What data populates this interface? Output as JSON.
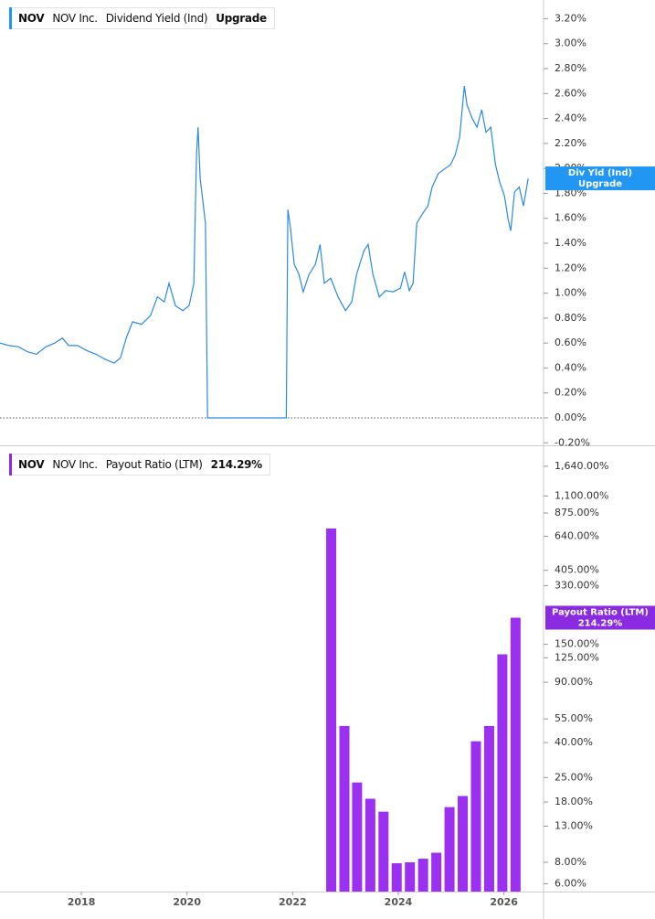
{
  "chart_data": [
    {
      "type": "line",
      "ticker": "NOV",
      "company": "NOV Inc.",
      "xlim": [
        2016.46,
        2026.75
      ],
      "ylim": [
        -0.22,
        3.35
      ],
      "yticks": [
        {
          "value": -0.2,
          "label": "-0.20%"
        },
        {
          "value": 0,
          "label": "0.00%"
        },
        {
          "value": 0.2,
          "label": "0.20%"
        },
        {
          "value": 0.4,
          "label": "0.40%"
        },
        {
          "value": 0.6,
          "label": "0.60%"
        },
        {
          "value": 0.8,
          "label": "0.80%"
        },
        {
          "value": 1.0,
          "label": "1.00%"
        },
        {
          "value": 1.2,
          "label": "1.20%"
        },
        {
          "value": 1.4,
          "label": "1.40%"
        },
        {
          "value": 1.6,
          "label": "1.60%"
        },
        {
          "value": 1.8,
          "label": "1.80%"
        },
        {
          "value": 2.0,
          "label": "2.00%"
        },
        {
          "value": 2.2,
          "label": "2.20%"
        },
        {
          "value": 2.4,
          "label": "2.40%"
        },
        {
          "value": 2.6,
          "label": "2.60%"
        },
        {
          "value": 2.8,
          "label": "2.80%"
        },
        {
          "value": 3.0,
          "label": "3.00%"
        },
        {
          "value": 3.2,
          "label": "3.20%"
        }
      ],
      "zero_line": true,
      "series": [
        {
          "name": "Dividend Yield (Ind)",
          "short_name": "Div Yld (Ind)",
          "status": "Upgrade",
          "color": "#2a8ae0",
          "tag_color": "#2196f3",
          "x": [
            2016.46,
            2016.63,
            2016.81,
            2016.98,
            2017.15,
            2017.33,
            2017.5,
            2017.64,
            2017.76,
            2017.93,
            2018.1,
            2018.28,
            2018.45,
            2018.62,
            2018.74,
            2018.85,
            2018.97,
            2019.14,
            2019.31,
            2019.44,
            2019.57,
            2019.66,
            2019.78,
            2019.92,
            2020.04,
            2020.13,
            2020.18,
            2020.21,
            2020.25,
            2020.3,
            2020.35,
            2020.39,
            2021.88,
            2021.91,
            2021.96,
            2022.03,
            2022.12,
            2022.2,
            2022.31,
            2022.43,
            2022.52,
            2022.6,
            2022.72,
            2022.86,
            2023.0,
            2023.12,
            2023.21,
            2023.35,
            2023.43,
            2023.52,
            2023.64,
            2023.76,
            2023.9,
            2024.04,
            2024.12,
            2024.21,
            2024.28,
            2024.35,
            2024.45,
            2024.56,
            2024.64,
            2024.76,
            2024.89,
            2024.99,
            2025.08,
            2025.16,
            2025.25,
            2025.3,
            2025.4,
            2025.49,
            2025.58,
            2025.66,
            2025.75,
            2025.84,
            2025.92,
            2026.01,
            2026.08,
            2026.13,
            2026.2,
            2026.29,
            2026.37,
            2026.46
          ],
          "values": [
            0.6,
            0.58,
            0.57,
            0.53,
            0.51,
            0.57,
            0.6,
            0.64,
            0.58,
            0.58,
            0.54,
            0.51,
            0.47,
            0.44,
            0.48,
            0.64,
            0.77,
            0.75,
            0.82,
            0.97,
            0.93,
            1.08,
            0.9,
            0.86,
            0.9,
            1.08,
            2.11,
            2.33,
            1.92,
            1.74,
            1.56,
            0,
            0,
            1.67,
            1.52,
            1.23,
            1.15,
            1.01,
            1.15,
            1.23,
            1.39,
            1.08,
            1.12,
            0.97,
            0.86,
            0.93,
            1.15,
            1.34,
            1.39,
            1.15,
            0.97,
            1.02,
            1.01,
            1.04,
            1.17,
            1.02,
            1.08,
            1.56,
            1.63,
            1.7,
            1.85,
            1.96,
            2.0,
            2.03,
            2.11,
            2.25,
            2.66,
            2.51,
            2.4,
            2.33,
            2.47,
            2.29,
            2.33,
            2.03,
            1.89,
            1.78,
            1.59,
            1.5,
            1.81,
            1.85,
            1.7,
            1.92
          ]
        }
      ]
    },
    {
      "type": "bar",
      "ticker": "NOV",
      "company": "NOV Inc.",
      "log": true,
      "xlim": [
        2016.46,
        2026.75
      ],
      "xticks": [
        2018,
        2020,
        2022,
        2024,
        2026
      ],
      "ylim": [
        5.4,
        1970
      ],
      "yticks": [
        {
          "value": 6,
          "label": "6.00%"
        },
        {
          "value": 8,
          "label": "8.00%"
        },
        {
          "value": 13,
          "label": "13.00%"
        },
        {
          "value": 18,
          "label": "18.00%"
        },
        {
          "value": 25,
          "label": "25.00%"
        },
        {
          "value": 40,
          "label": "40.00%"
        },
        {
          "value": 55,
          "label": "55.00%"
        },
        {
          "value": 90,
          "label": "90.00%"
        },
        {
          "value": 125,
          "label": "125.00%"
        },
        {
          "value": 150,
          "label": "150.00%"
        },
        {
          "value": 330,
          "label": "330.00%"
        },
        {
          "value": 405,
          "label": "405.00%"
        },
        {
          "value": 640,
          "label": "640.00%"
        },
        {
          "value": 875,
          "label": "875.00%"
        },
        {
          "value": 1100,
          "label": "1,100.00%"
        },
        {
          "value": 1640,
          "label": "1,640.00%"
        }
      ],
      "series": [
        {
          "name": "Payout Ratio (LTM)",
          "color": "#9b30f0",
          "tag_color": "#8a2be2",
          "x": [
            2022.73,
            2022.98,
            2023.22,
            2023.47,
            2023.72,
            2023.97,
            2024.22,
            2024.47,
            2024.72,
            2024.97,
            2025.22,
            2025.47,
            2025.72,
            2025.97,
            2026.22
          ],
          "values": [
            711,
            50,
            23.4,
            18.8,
            15.8,
            7.9,
            8.0,
            8.4,
            9.1,
            16.8,
            19.5,
            40.7,
            50,
            131,
            214.29
          ],
          "value_labels": [
            null,
            null,
            null,
            null,
            null,
            null,
            null,
            null,
            null,
            null,
            null,
            null,
            null,
            null,
            "214.29%"
          ]
        }
      ]
    }
  ]
}
